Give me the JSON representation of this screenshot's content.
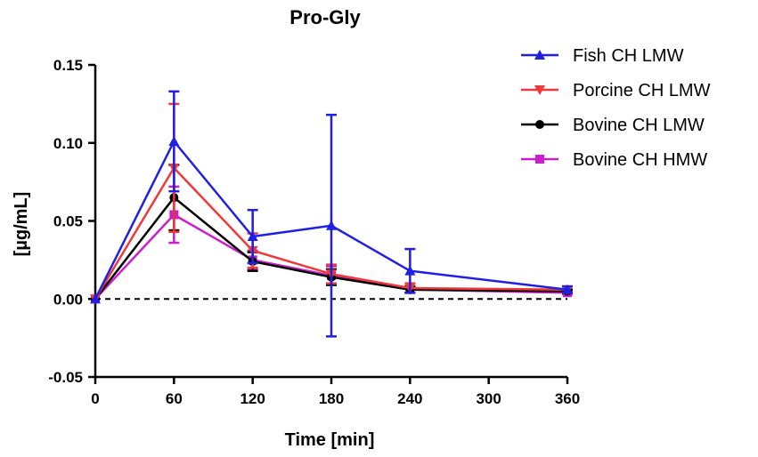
{
  "chart_data": {
    "type": "line",
    "title": "Pro-Gly",
    "xlabel": "Time [min]",
    "ylabel": "[µg/mL]",
    "xlim": [
      0,
      360
    ],
    "ylim": [
      -0.05,
      0.15
    ],
    "xticks": [
      0,
      60,
      120,
      180,
      240,
      300,
      360
    ],
    "xtick_labels": [
      "0",
      "60",
      "120",
      "180",
      "240",
      "300",
      "360"
    ],
    "yticks": [
      -0.05,
      0.0,
      0.05,
      0.1,
      0.15
    ],
    "ytick_labels": [
      "-0.05",
      "0.00",
      "0.05",
      "0.10",
      "0.15"
    ],
    "reference_line": {
      "y": 0,
      "style": "dashed"
    },
    "legend_position": "top-right",
    "x": [
      0,
      60,
      120,
      180,
      240,
      360
    ],
    "series": [
      {
        "name": "Fish CH LMW",
        "color": "#1f1fe6",
        "marker": "triangle-up",
        "values": [
          0.0,
          0.101,
          0.04,
          0.047,
          0.018,
          0.006
        ],
        "errors": [
          0.0,
          0.032,
          0.017,
          0.071,
          0.014,
          0.002
        ]
      },
      {
        "name": "Porcine CH LMW",
        "color": "#ee3a3a",
        "marker": "triangle-down",
        "values": [
          0.0,
          0.084,
          0.031,
          0.016,
          0.007,
          0.006
        ],
        "errors": [
          0.0,
          0.041,
          0.011,
          0.006,
          0.003,
          0.002
        ]
      },
      {
        "name": "Bovine CH LMW",
        "color": "#000000",
        "marker": "circle",
        "values": [
          0.0,
          0.065,
          0.024,
          0.014,
          0.006,
          0.005
        ],
        "errors": [
          0.0,
          0.021,
          0.006,
          0.005,
          0.002,
          0.001
        ]
      },
      {
        "name": "Bovine CH HMW",
        "color": "#cc1fcc",
        "marker": "square",
        "values": [
          0.0,
          0.054,
          0.025,
          0.015,
          0.006,
          0.004
        ],
        "errors": [
          0.0,
          0.018,
          0.006,
          0.006,
          0.002,
          0.001
        ]
      }
    ]
  }
}
